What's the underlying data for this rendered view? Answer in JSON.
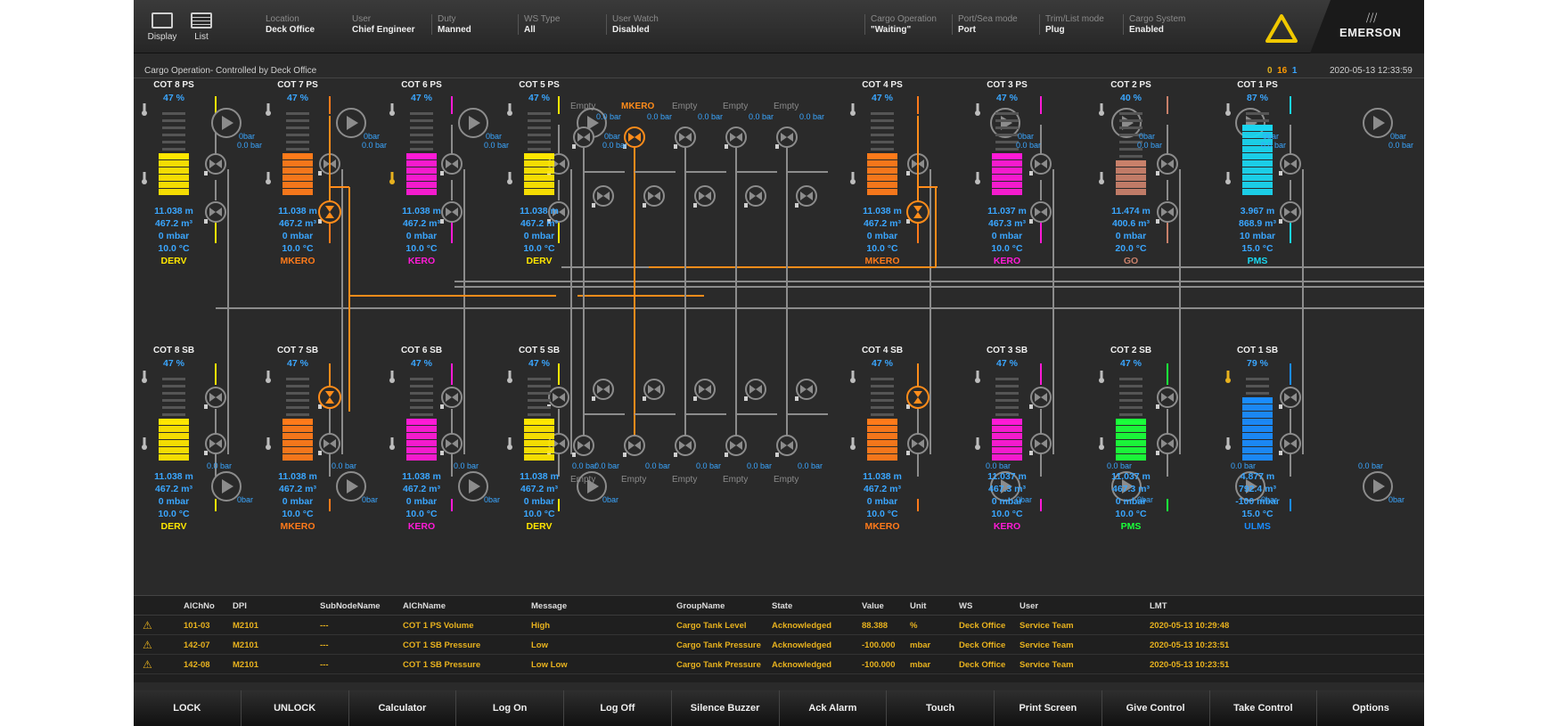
{
  "header": {
    "display_label": "Display",
    "list_label": "List",
    "fields": [
      {
        "label": "Location",
        "value": "Deck Office"
      },
      {
        "label": "User",
        "value": "Chief Engineer"
      },
      {
        "label": "Duty",
        "value": "Manned"
      },
      {
        "label": "WS Type",
        "value": "All"
      },
      {
        "label": "User Watch",
        "value": "Disabled"
      },
      {
        "label": "Cargo Operation",
        "value": "\"Waiting\""
      },
      {
        "label": "Port/Sea mode",
        "value": "Port"
      },
      {
        "label": "Trim/List mode",
        "value": "Plug"
      },
      {
        "label": "Cargo System",
        "value": "Enabled"
      }
    ],
    "logo": "EMERSON"
  },
  "subheader": {
    "title": "Cargo Operation- Controlled by Deck Office",
    "count_unack": "0",
    "count_ack": "16",
    "count_other": "1",
    "timestamp": "2020-05-13 12:33:59"
  },
  "tanks_ps": [
    {
      "name": "COT 8 PS",
      "pct": "47 %",
      "level": "11.038 m",
      "volume": "467.2 m³",
      "pressure": "0 mbar",
      "temp": "10.0 °C",
      "product": "DERV",
      "color": "#ffe600",
      "fill": 0.47
    },
    {
      "name": "COT 7 PS",
      "pct": "47 %",
      "level": "11.038 m",
      "volume": "467.2 m³",
      "pressure": "0 mbar",
      "temp": "10.0 °C",
      "product": "MKERO",
      "color": "#ff7a1a",
      "fill": 0.47
    },
    {
      "name": "COT 6 PS",
      "pct": "47 %",
      "level": "11.038 m",
      "volume": "467.2 m³",
      "pressure": "0 mbar",
      "temp": "10.0 °C",
      "product": "KERO",
      "color": "#ff1ad6",
      "fill": 0.47
    },
    {
      "name": "COT 5 PS",
      "pct": "47 %",
      "level": "11.038 m",
      "volume": "467.2 m³",
      "pressure": "0 mbar",
      "temp": "10.0 °C",
      "product": "DERV",
      "color": "#ffe600",
      "fill": 0.47
    },
    {
      "name": "COT 4 PS",
      "pct": "47 %",
      "level": "11.038 m",
      "volume": "467.2 m³",
      "pressure": "0 mbar",
      "temp": "10.0 °C",
      "product": "MKERO",
      "color": "#ff7a1a",
      "fill": 0.47
    },
    {
      "name": "COT 3 PS",
      "pct": "47 %",
      "level": "11.037 m",
      "volume": "467.3 m³",
      "pressure": "0 mbar",
      "temp": "10.0 °C",
      "product": "KERO",
      "color": "#ff1ad6",
      "fill": 0.47
    },
    {
      "name": "COT 2 PS",
      "pct": "40 %",
      "level": "11.474 m",
      "volume": "400.6 m³",
      "pressure": "0 mbar",
      "temp": "20.0 °C",
      "product": "GO",
      "color": "#c8806a",
      "fill": 0.4
    },
    {
      "name": "COT 1 PS",
      "pct": "87 %",
      "level": "3.967 m",
      "volume": "868.9 m³",
      "pressure": "10 mbar",
      "temp": "15.0 °C",
      "product": "PMS",
      "color": "#1ad6f0",
      "fill": 0.87
    }
  ],
  "tanks_sb": [
    {
      "name": "COT 8 SB",
      "pct": "47 %",
      "level": "11.038 m",
      "volume": "467.2 m³",
      "pressure": "0 mbar",
      "temp": "10.0 °C",
      "product": "DERV",
      "color": "#ffe600",
      "fill": 0.47
    },
    {
      "name": "COT 7 SB",
      "pct": "47 %",
      "level": "11.038 m",
      "volume": "467.2 m³",
      "pressure": "0 mbar",
      "temp": "10.0 °C",
      "product": "MKERO",
      "color": "#ff7a1a",
      "fill": 0.47
    },
    {
      "name": "COT 6 SB",
      "pct": "47 %",
      "level": "11.038 m",
      "volume": "467.2 m³",
      "pressure": "0 mbar",
      "temp": "10.0 °C",
      "product": "KERO",
      "color": "#ff1ad6",
      "fill": 0.47
    },
    {
      "name": "COT 5 SB",
      "pct": "47 %",
      "level": "11.038 m",
      "volume": "467.2 m³",
      "pressure": "0 mbar",
      "temp": "10.0 °C",
      "product": "DERV",
      "color": "#ffe600",
      "fill": 0.47
    },
    {
      "name": "COT 4 SB",
      "pct": "47 %",
      "level": "11.038 m",
      "volume": "467.2 m³",
      "pressure": "0 mbar",
      "temp": "10.0 °C",
      "product": "MKERO",
      "color": "#ff7a1a",
      "fill": 0.47
    },
    {
      "name": "COT 3 SB",
      "pct": "47 %",
      "level": "11.037 m",
      "volume": "467.3 m³",
      "pressure": "0 mbar",
      "temp": "10.0 °C",
      "product": "KERO",
      "color": "#ff1ad6",
      "fill": 0.47
    },
    {
      "name": "COT 2 SB",
      "pct": "47 %",
      "level": "11.037 m",
      "volume": "467.3 m³",
      "pressure": "0 mbar",
      "temp": "10.0 °C",
      "product": "PMS",
      "color": "#1aff3a",
      "fill": 0.47
    },
    {
      "name": "COT 1 SB",
      "pct": "79 %",
      "level": "4.877 m",
      "volume": "792.4 m³",
      "pressure": "-100 mbar",
      "temp": "15.0 °C",
      "product": "ULMS",
      "color": "#1a8cff",
      "fill": 0.79
    }
  ],
  "pump_pressures": {
    "pump": "0bar",
    "discharge": "0.0 bar"
  },
  "manifold_top": [
    "Empty",
    "MKERO",
    "Empty",
    "Empty",
    "Empty"
  ],
  "manifold_bottom": [
    "Empty",
    "Empty",
    "Empty",
    "Empty",
    "Empty"
  ],
  "alarm_table": {
    "headers": [
      "AlChNo",
      "DPI",
      "SubNodeName",
      "AlChName",
      "Message",
      "GroupName",
      "State",
      "Value",
      "Unit",
      "WS",
      "User",
      "LMT"
    ],
    "rows": [
      [
        "101-03",
        "M2101",
        "---",
        "COT 1 PS Volume",
        "High",
        "Cargo Tank Level",
        "Acknowledged",
        "88.388",
        "%",
        "Deck Office",
        "Service Team",
        "2020-05-13 10:29:48"
      ],
      [
        "142-07",
        "M2101",
        "---",
        "COT 1 SB Pressure",
        "Low",
        "Cargo Tank Pressure",
        "Acknowledged",
        "-100.000",
        "mbar",
        "Deck Office",
        "Service Team",
        "2020-05-13 10:23:51"
      ],
      [
        "142-08",
        "M2101",
        "---",
        "COT 1 SB Pressure",
        "Low Low",
        "Cargo Tank Pressure",
        "Acknowledged",
        "-100.000",
        "mbar",
        "Deck Office",
        "Service Team",
        "2020-05-13 10:23:51"
      ]
    ]
  },
  "buttons": [
    "LOCK",
    "UNLOCK",
    "Calculator",
    "Log On",
    "Log Off",
    "Silence Buzzer",
    "Ack Alarm",
    "Touch",
    "Print Screen",
    "Give Control",
    "Take Control",
    "Options"
  ],
  "colors": {
    "accent_blue": "#3aa6ff",
    "alarm_yellow": "#e8b21e",
    "mkero_orange": "#ff8c1a",
    "pipe_gray": "#8c8c8c"
  }
}
